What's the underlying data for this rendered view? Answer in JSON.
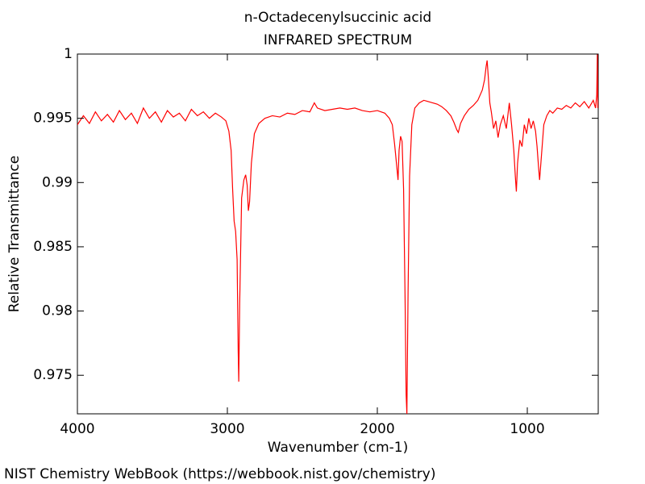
{
  "chart_data": {
    "type": "line",
    "title": "n-Octadecenylsuccinic acid",
    "subtitle": "INFRARED SPECTRUM",
    "x_label": "Wavenumber (cm-1)",
    "y_label": "Relative Transmittance",
    "footer": "NIST Chemistry WebBook (https://webbook.nist.gov/chemistry)",
    "xlim": [
      4000,
      527
    ],
    "ylim": [
      0.972,
      1
    ],
    "xticks": [
      4000,
      3000,
      2000,
      1000
    ],
    "yticks": [
      0.975,
      0.98,
      0.985,
      0.99,
      0.995,
      1
    ],
    "series": [
      {
        "color": "#ff0000",
        "x": [
          4000,
          3960,
          3920,
          3880,
          3840,
          3800,
          3760,
          3720,
          3680,
          3640,
          3600,
          3560,
          3520,
          3480,
          3440,
          3400,
          3360,
          3320,
          3280,
          3240,
          3200,
          3160,
          3120,
          3080,
          3040,
          3010,
          2990,
          2975,
          2965,
          2955,
          2945,
          2935,
          2928,
          2924,
          2918,
          2905,
          2890,
          2878,
          2868,
          2860,
          2852,
          2840,
          2820,
          2790,
          2750,
          2700,
          2650,
          2600,
          2550,
          2500,
          2450,
          2420,
          2400,
          2350,
          2300,
          2250,
          2200,
          2150,
          2100,
          2050,
          2000,
          1950,
          1920,
          1900,
          1885,
          1870,
          1862,
          1855,
          1845,
          1835,
          1825,
          1815,
          1808,
          1803,
          1795,
          1785,
          1770,
          1750,
          1720,
          1690,
          1660,
          1630,
          1600,
          1570,
          1540,
          1510,
          1490,
          1470,
          1460,
          1445,
          1420,
          1390,
          1360,
          1330,
          1300,
          1285,
          1275,
          1268,
          1260,
          1250,
          1240,
          1225,
          1210,
          1195,
          1180,
          1160,
          1140,
          1120,
          1105,
          1090,
          1080,
          1073,
          1065,
          1050,
          1035,
          1020,
          1005,
          990,
          975,
          960,
          945,
          935,
          925,
          918,
          905,
          890,
          870,
          850,
          830,
          800,
          770,
          740,
          710,
          680,
          650,
          620,
          590,
          560,
          545,
          537,
          533,
          530
        ],
        "values": [
          0.9945,
          0.9952,
          0.9946,
          0.9955,
          0.9948,
          0.9953,
          0.9947,
          0.9956,
          0.9949,
          0.9954,
          0.9946,
          0.9958,
          0.995,
          0.9955,
          0.9947,
          0.9956,
          0.9951,
          0.9954,
          0.9948,
          0.9957,
          0.9952,
          0.9955,
          0.995,
          0.9954,
          0.9951,
          0.9948,
          0.994,
          0.9925,
          0.9895,
          0.987,
          0.9862,
          0.984,
          0.977,
          0.9745,
          0.9805,
          0.9888,
          0.9902,
          0.9906,
          0.9898,
          0.9878,
          0.9885,
          0.9915,
          0.9938,
          0.9946,
          0.995,
          0.9952,
          0.9951,
          0.9954,
          0.9953,
          0.9956,
          0.9955,
          0.9962,
          0.9958,
          0.9956,
          0.9957,
          0.9958,
          0.9957,
          0.9958,
          0.9956,
          0.9955,
          0.9956,
          0.9954,
          0.995,
          0.9945,
          0.993,
          0.9912,
          0.9902,
          0.9925,
          0.9936,
          0.9932,
          0.9895,
          0.981,
          0.9735,
          0.972,
          0.9815,
          0.9905,
          0.9945,
          0.9958,
          0.9962,
          0.9964,
          0.9963,
          0.9962,
          0.9961,
          0.9959,
          0.9956,
          0.9952,
          0.9947,
          0.9941,
          0.9939,
          0.9946,
          0.9952,
          0.9957,
          0.996,
          0.9964,
          0.9972,
          0.998,
          0.999,
          0.9995,
          0.9982,
          0.9962,
          0.9955,
          0.9942,
          0.9948,
          0.9935,
          0.9945,
          0.9952,
          0.9942,
          0.9962,
          0.9945,
          0.9925,
          0.9905,
          0.9893,
          0.9915,
          0.9933,
          0.9928,
          0.9945,
          0.9938,
          0.995,
          0.9942,
          0.9948,
          0.994,
          0.9928,
          0.9912,
          0.9902,
          0.9922,
          0.9945,
          0.9952,
          0.9956,
          0.9954,
          0.9958,
          0.9957,
          0.996,
          0.9958,
          0.9962,
          0.9959,
          0.9963,
          0.9958,
          0.9964,
          0.9958,
          0.9968,
          1,
          0.9958
        ]
      }
    ]
  }
}
